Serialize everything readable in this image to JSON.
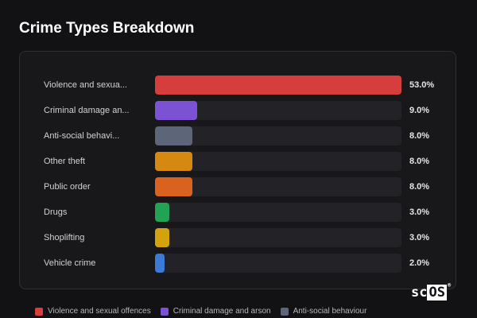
{
  "header": {
    "title": "Crime Types Breakdown"
  },
  "chart_data": {
    "type": "bar",
    "orientation": "horizontal",
    "title": "Crime Types Breakdown",
    "categories": [
      "Violence and sexual offences",
      "Criminal damage and arson",
      "Anti-social behaviour",
      "Other theft",
      "Public order",
      "Drugs",
      "Shoplifting",
      "Vehicle crime"
    ],
    "display_labels": [
      "Violence and sexua...",
      "Criminal damage an...",
      "Anti-social behavi...",
      "Other theft",
      "Public order",
      "Drugs",
      "Shoplifting",
      "Vehicle crime"
    ],
    "values": [
      53.0,
      9.0,
      8.0,
      8.0,
      8.0,
      3.0,
      3.0,
      2.0
    ],
    "value_labels": [
      "53.0%",
      "9.0%",
      "8.0%",
      "8.0%",
      "8.0%",
      "3.0%",
      "3.0%",
      "2.0%"
    ],
    "colors": [
      "#d63e3e",
      "#7b52d4",
      "#5c6678",
      "#d68910",
      "#d9621e",
      "#22a354",
      "#d4a20c",
      "#3b7ad6"
    ],
    "max_value": 53.0,
    "legend": {
      "placement": "bottom",
      "entries": [
        "Violence and sexual offences",
        "Criminal damage and arson",
        "Anti-social behaviour"
      ]
    }
  },
  "logo": {
    "text_main": "sc",
    "text_box": "OS",
    "reg": "®"
  }
}
